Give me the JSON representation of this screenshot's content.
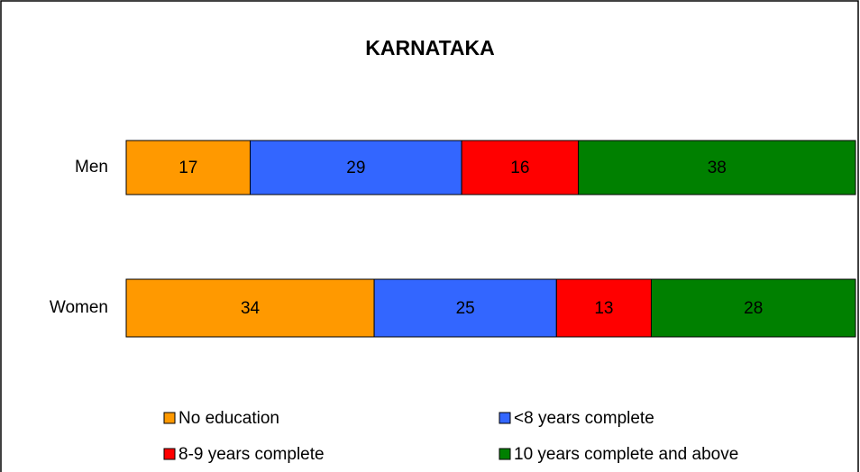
{
  "chart_data": {
    "type": "stacked_barh",
    "title": "KARNATAKA",
    "categories": [
      "Men",
      "Women"
    ],
    "series": [
      {
        "name": "No education",
        "color": "#ff9900",
        "values": [
          17,
          34
        ]
      },
      {
        "name": "<8 years complete",
        "color": "#3366ff",
        "values": [
          29,
          25
        ]
      },
      {
        "name": "8-9 years complete",
        "color": "#ff0000",
        "values": [
          16,
          13
        ]
      },
      {
        "name": "10 years complete and above",
        "color": "#008000",
        "values": [
          38,
          28
        ]
      }
    ],
    "legend": "bottom"
  }
}
